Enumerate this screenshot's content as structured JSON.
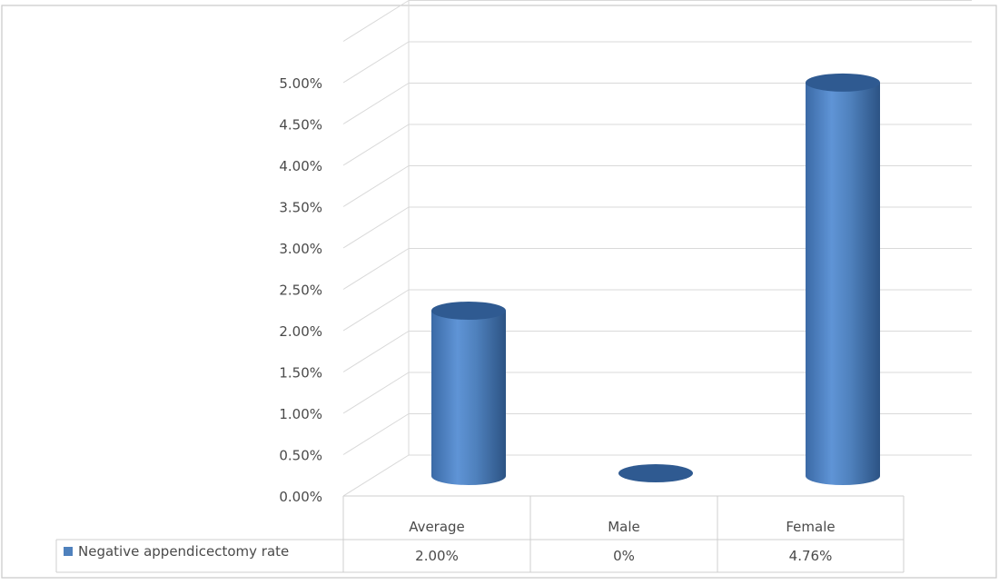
{
  "chart_data": {
    "type": "bar",
    "categories": [
      "Average",
      "Male",
      "Female"
    ],
    "series": [
      {
        "name": "Negative appendicectomy rate",
        "values": [
          2.0,
          0.0,
          4.76
        ]
      }
    ],
    "data_table": [
      "2.00%",
      "0%",
      "4.76%"
    ],
    "y_ticks": [
      "0.00%",
      "0.50%",
      "1.00%",
      "1.50%",
      "2.00%",
      "2.50%",
      "3.00%",
      "3.50%",
      "4.00%",
      "4.50%",
      "5.00%"
    ],
    "ylim": [
      0,
      5.5
    ],
    "title": "",
    "xlabel": "",
    "ylabel": "",
    "grid": true,
    "legend": "in data table",
    "colors": {
      "bar": "#4f81bd",
      "bar_dark": "#2f5a91",
      "bar_light": "#7fa7d8"
    }
  }
}
